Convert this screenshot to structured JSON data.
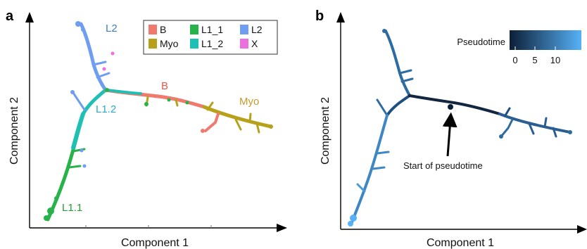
{
  "panel_a": {
    "letter": "a",
    "xlabel": "Component 1",
    "ylabel": "Component 2",
    "legend": [
      {
        "label": "B",
        "color": "#f07a6e"
      },
      {
        "label": "L1_1",
        "color": "#27b24a"
      },
      {
        "label": "L2",
        "color": "#6f9df2"
      },
      {
        "label": "Myo",
        "color": "#b8a11a"
      },
      {
        "label": "L1_2",
        "color": "#1fc0b4"
      },
      {
        "label": "X",
        "color": "#ec6fe0"
      }
    ],
    "labels": {
      "l2": "L2",
      "b": "B",
      "myo": "Myo",
      "l12": "L1.2",
      "l11": "L1.1"
    },
    "label_colors": {
      "l2": "#3d7fbf",
      "b": "#e0594c",
      "myo": "#c79a2a",
      "l12": "#2aa9c9",
      "l11": "#2a9a3a"
    }
  },
  "panel_b": {
    "letter": "b",
    "xlabel": "Component 1",
    "ylabel": "Component 2",
    "colorbar": {
      "title": "Pseudotime",
      "ticks": [
        "0",
        "5",
        "10"
      ],
      "color_low": "#0d1f36",
      "color_high": "#56b1f7"
    },
    "annotation": "Start of pseudotime"
  }
}
